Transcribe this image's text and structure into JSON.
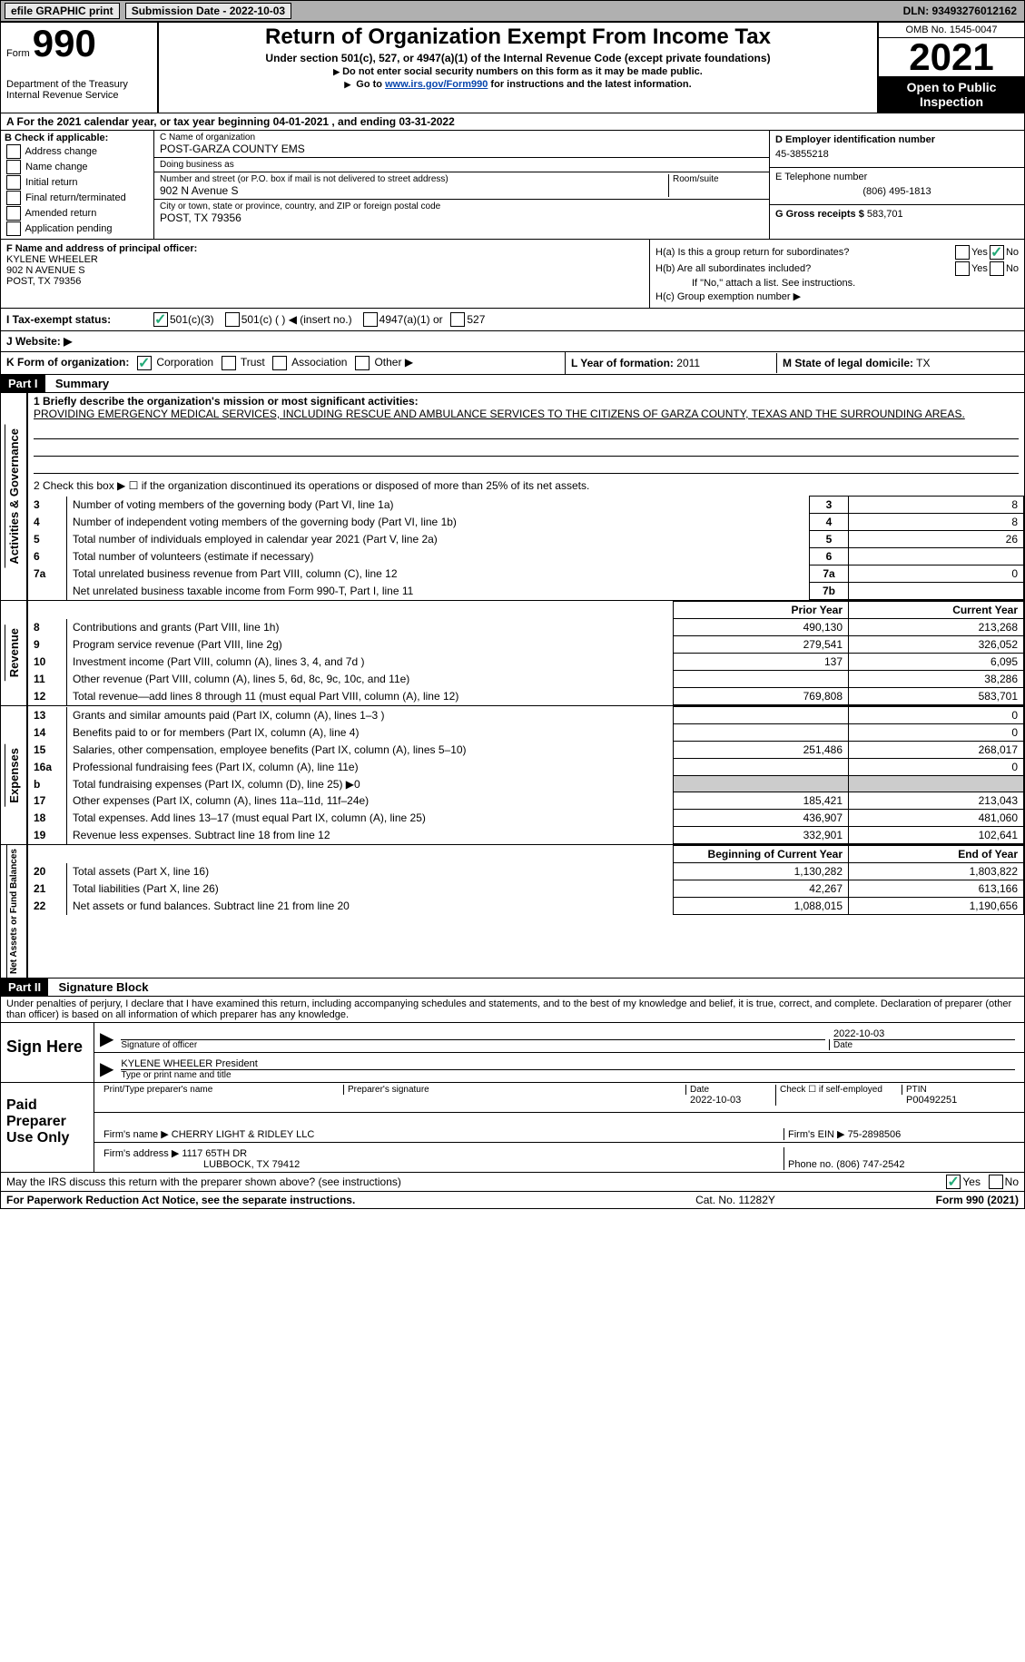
{
  "topbar": {
    "efile": "efile GRAPHIC print",
    "submission": "Submission Date - 2022-10-03",
    "dln": "DLN: 93493276012162"
  },
  "header": {
    "form_label": "Form",
    "form_number": "990",
    "title": "Return of Organization Exempt From Income Tax",
    "subtitle1": "Under section 501(c), 527, or 4947(a)(1) of the Internal Revenue Code (except private foundations)",
    "subtitle2": "Do not enter social security numbers on this form as it may be made public.",
    "subtitle3_pre": "Go to ",
    "subtitle3_link": "www.irs.gov/Form990",
    "subtitle3_post": " for instructions and the latest information.",
    "dept": "Department of the Treasury",
    "irs": "Internal Revenue Service",
    "omb": "OMB No. 1545-0047",
    "year": "2021",
    "open": "Open to Public Inspection"
  },
  "section_a": "A For the 2021 calendar year, or tax year beginning 04-01-2021   , and ending 03-31-2022",
  "section_b": {
    "label": "B Check if applicable:",
    "opts": [
      "Address change",
      "Name change",
      "Initial return",
      "Final return/terminated",
      "Amended return",
      "Application pending"
    ]
  },
  "section_c": {
    "name_label": "C Name of organization",
    "name": "POST-GARZA COUNTY EMS",
    "dba_label": "Doing business as",
    "dba": "",
    "addr_label": "Number and street (or P.O. box if mail is not delivered to street address)",
    "room_label": "Room/suite",
    "addr": "902 N Avenue S",
    "city_label": "City or town, state or province, country, and ZIP or foreign postal code",
    "city": "POST, TX  79356"
  },
  "section_d": {
    "ein_label": "D Employer identification number",
    "ein": "45-3855218",
    "tel_label": "E Telephone number",
    "tel": "(806) 495-1813",
    "gross_label": "G Gross receipts $",
    "gross": "583,701"
  },
  "section_f": {
    "label": "F Name and address of principal officer:",
    "name": "KYLENE WHEELER",
    "addr1": "902 N AVENUE S",
    "addr2": "POST, TX  79356"
  },
  "section_h": {
    "a_label": "H(a)  Is this a group return for subordinates?",
    "b_label": "H(b)  Are all subordinates included?",
    "b_note": "If \"No,\" attach a list. See instructions.",
    "c_label": "H(c)  Group exemption number ▶",
    "yes": "Yes",
    "no": "No"
  },
  "row_i": {
    "label": "I   Tax-exempt status:",
    "opt1": "501(c)(3)",
    "opt2": "501(c) (  ) ◀ (insert no.)",
    "opt3": "4947(a)(1) or",
    "opt4": "527"
  },
  "row_j": {
    "label": "J   Website: ▶"
  },
  "row_k": {
    "label": "K Form of organization:",
    "opts": [
      "Corporation",
      "Trust",
      "Association",
      "Other ▶"
    ]
  },
  "row_l": {
    "year_label": "L Year of formation:",
    "year": "2011",
    "state_label": "M State of legal domicile:",
    "state": "TX"
  },
  "part1": {
    "header": "Part I",
    "title": "Summary"
  },
  "summary": {
    "line1_label": "1   Briefly describe the organization's mission or most significant activities:",
    "line1_text": "PROVIDING EMERGENCY MEDICAL SERVICES, INCLUDING RESCUE AND AMBULANCE SERVICES TO THE CITIZENS OF GARZA COUNTY, TEXAS AND THE SURROUNDING AREAS.",
    "line2": "2   Check this box ▶ ☐ if the organization discontinued its operations or disposed of more than 25% of its net assets.",
    "rows": [
      {
        "n": "3",
        "desc": "Number of voting members of the governing body (Part VI, line 1a)",
        "box": "3",
        "val": "8"
      },
      {
        "n": "4",
        "desc": "Number of independent voting members of the governing body (Part VI, line 1b)",
        "box": "4",
        "val": "8"
      },
      {
        "n": "5",
        "desc": "Total number of individuals employed in calendar year 2021 (Part V, line 2a)",
        "box": "5",
        "val": "26"
      },
      {
        "n": "6",
        "desc": "Total number of volunteers (estimate if necessary)",
        "box": "6",
        "val": ""
      },
      {
        "n": "7a",
        "desc": "Total unrelated business revenue from Part VIII, column (C), line 12",
        "box": "7a",
        "val": "0"
      },
      {
        "n": "",
        "desc": "Net unrelated business taxable income from Form 990-T, Part I, line 11",
        "box": "7b",
        "val": ""
      }
    ]
  },
  "revenue": {
    "tab": "Revenue",
    "header_prior": "Prior Year",
    "header_current": "Current Year",
    "rows": [
      {
        "n": "8",
        "desc": "Contributions and grants (Part VIII, line 1h)",
        "prior": "490,130",
        "current": "213,268"
      },
      {
        "n": "9",
        "desc": "Program service revenue (Part VIII, line 2g)",
        "prior": "279,541",
        "current": "326,052"
      },
      {
        "n": "10",
        "desc": "Investment income (Part VIII, column (A), lines 3, 4, and 7d )",
        "prior": "137",
        "current": "6,095"
      },
      {
        "n": "11",
        "desc": "Other revenue (Part VIII, column (A), lines 5, 6d, 8c, 9c, 10c, and 11e)",
        "prior": "",
        "current": "38,286"
      },
      {
        "n": "12",
        "desc": "Total revenue—add lines 8 through 11 (must equal Part VIII, column (A), line 12)",
        "prior": "769,808",
        "current": "583,701"
      }
    ]
  },
  "expenses": {
    "tab": "Expenses",
    "rows": [
      {
        "n": "13",
        "desc": "Grants and similar amounts paid (Part IX, column (A), lines 1–3 )",
        "prior": "",
        "current": "0"
      },
      {
        "n": "14",
        "desc": "Benefits paid to or for members (Part IX, column (A), line 4)",
        "prior": "",
        "current": "0"
      },
      {
        "n": "15",
        "desc": "Salaries, other compensation, employee benefits (Part IX, column (A), lines 5–10)",
        "prior": "251,486",
        "current": "268,017"
      },
      {
        "n": "16a",
        "desc": "Professional fundraising fees (Part IX, column (A), line 11e)",
        "prior": "",
        "current": "0"
      },
      {
        "n": "b",
        "desc": "Total fundraising expenses (Part IX, column (D), line 25) ▶0",
        "prior": "grey",
        "current": "grey"
      },
      {
        "n": "17",
        "desc": "Other expenses (Part IX, column (A), lines 11a–11d, 11f–24e)",
        "prior": "185,421",
        "current": "213,043"
      },
      {
        "n": "18",
        "desc": "Total expenses. Add lines 13–17 (must equal Part IX, column (A), line 25)",
        "prior": "436,907",
        "current": "481,060"
      },
      {
        "n": "19",
        "desc": "Revenue less expenses. Subtract line 18 from line 12",
        "prior": "332,901",
        "current": "102,641"
      }
    ]
  },
  "netassets": {
    "tab": "Net Assets or Fund Balances",
    "header_begin": "Beginning of Current Year",
    "header_end": "End of Year",
    "rows": [
      {
        "n": "20",
        "desc": "Total assets (Part X, line 16)",
        "begin": "1,130,282",
        "end": "1,803,822"
      },
      {
        "n": "21",
        "desc": "Total liabilities (Part X, line 26)",
        "begin": "42,267",
        "end": "613,166"
      },
      {
        "n": "22",
        "desc": "Net assets or fund balances. Subtract line 21 from line 20",
        "begin": "1,088,015",
        "end": "1,190,656"
      }
    ]
  },
  "part2": {
    "header": "Part II",
    "title": "Signature Block"
  },
  "declaration": "Under penalties of perjury, I declare that I have examined this return, including accompanying schedules and statements, and to the best of my knowledge and belief, it is true, correct, and complete. Declaration of preparer (other than officer) is based on all information of which preparer has any knowledge.",
  "sign": {
    "label": "Sign Here",
    "sig_label": "Signature of officer",
    "date": "2022-10-03",
    "date_label": "Date",
    "name": "KYLENE WHEELER  President",
    "name_label": "Type or print name and title"
  },
  "preparer": {
    "label": "Paid Preparer Use Only",
    "print_label": "Print/Type preparer's name",
    "sig_label": "Preparer's signature",
    "date_label": "Date",
    "date": "2022-10-03",
    "check_label": "Check ☐ if self-employed",
    "ptin_label": "PTIN",
    "ptin": "P00492251",
    "firm_name_label": "Firm's name    ▶",
    "firm_name": "CHERRY LIGHT & RIDLEY LLC",
    "firm_ein_label": "Firm's EIN ▶",
    "firm_ein": "75-2898506",
    "firm_addr_label": "Firm's address ▶",
    "firm_addr1": "1117 65TH DR",
    "firm_addr2": "LUBBOCK, TX  79412",
    "phone_label": "Phone no.",
    "phone": "(806) 747-2542"
  },
  "may_irs": {
    "q": "May the IRS discuss this return with the preparer shown above? (see instructions)",
    "yes": "Yes",
    "no": "No"
  },
  "footer": {
    "left": "For Paperwork Reduction Act Notice, see the separate instructions.",
    "mid": "Cat. No. 11282Y",
    "right": "Form 990 (2021)"
  },
  "tabs": {
    "activities": "Activities & Governance"
  }
}
